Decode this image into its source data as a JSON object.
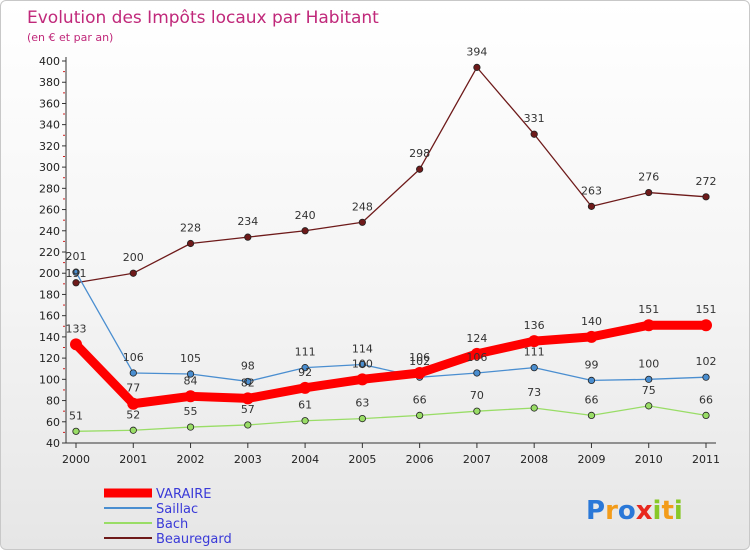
{
  "chart_data": {
    "type": "line",
    "title": "Evolution des Impôts locaux par Habitant",
    "subtitle": "(en € et par an)",
    "x": [
      "2000",
      "2001",
      "2002",
      "2003",
      "2004",
      "2005",
      "2006",
      "2007",
      "2008",
      "2009",
      "2010",
      "2011"
    ],
    "ylim": [
      40,
      400
    ],
    "yticks": [
      40,
      60,
      80,
      100,
      120,
      140,
      160,
      180,
      200,
      220,
      240,
      260,
      280,
      300,
      320,
      340,
      360,
      380,
      400
    ],
    "series": [
      {
        "name": "VARAIRE",
        "color": "#ff0000",
        "values": [
          133,
          77,
          84,
          82,
          92,
          100,
          106,
          124,
          136,
          140,
          151,
          151
        ]
      },
      {
        "name": "Saillac",
        "color": "#4a8ed0",
        "values": [
          201,
          106,
          105,
          98,
          111,
          114,
          102,
          106,
          111,
          99,
          100,
          102
        ]
      },
      {
        "name": "Bach",
        "color": "#99dd66",
        "values": [
          51,
          52,
          55,
          57,
          61,
          63,
          66,
          70,
          73,
          66,
          75,
          66
        ]
      },
      {
        "name": "Beauregard",
        "color": "#6e1a1a",
        "values": [
          191,
          200,
          228,
          234,
          240,
          248,
          298,
          394,
          331,
          263,
          276,
          272
        ]
      }
    ]
  },
  "labels": {
    "VARAIRE": [
      "133",
      "77",
      "84",
      "82",
      "92",
      "100",
      "106",
      "124",
      "136",
      "140",
      "151",
      "151"
    ],
    "Saillac": [
      "201",
      "106",
      "105",
      "98",
      "111",
      "114",
      "102",
      "106",
      "111",
      "99",
      "100",
      "102"
    ],
    "Bach": [
      "51",
      "52",
      "55",
      "57",
      "61",
      "63",
      "66",
      "70",
      "73",
      "66",
      "75",
      "66"
    ],
    "Beauregard": [
      "191",
      "200",
      "228",
      "234",
      "240",
      "248",
      "298",
      "394",
      "331",
      "263",
      "276",
      "272"
    ]
  },
  "logo": {
    "text": "Proxiti",
    "colors": [
      "#2a78d8",
      "#f39c1a",
      "#2a78d8",
      "#e8281e",
      "#88c828",
      "#f39c1a",
      "#88c828"
    ]
  }
}
